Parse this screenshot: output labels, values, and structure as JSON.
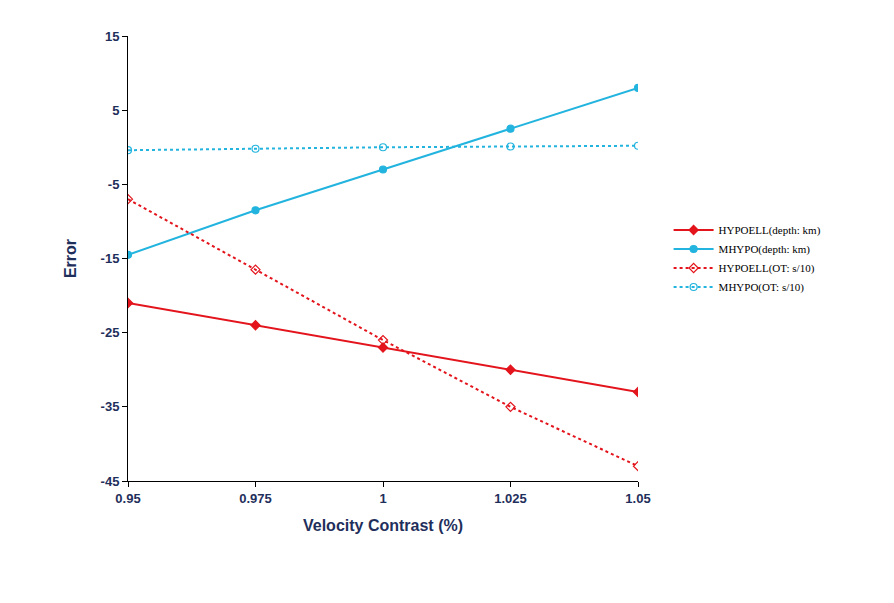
{
  "chart_data": {
    "type": "line",
    "x_label": "Velocity Contrast (%)",
    "y_label": "Error",
    "x": [
      0.95,
      0.975,
      1,
      1.025,
      1.05
    ],
    "xlim": [
      0.95,
      1.05
    ],
    "xticks": [
      0.95,
      0.975,
      1,
      1.025,
      1.05
    ],
    "ylim": [
      -45,
      15
    ],
    "yticks": [
      -45,
      -35,
      -25,
      -15,
      -5,
      5,
      15
    ],
    "grid": false,
    "legend": "right",
    "series": [
      {
        "name": "HYPOELL(depth: km)",
        "color": "#e3141c",
        "marker": "diamond",
        "line_style": "solid",
        "values": [
          -21,
          -24,
          -27,
          -30,
          -33
        ]
      },
      {
        "name": "MHYPO(depth: km)",
        "color": "#22b4de",
        "marker": "circle",
        "line_style": "solid",
        "values": [
          -14.5,
          -8.5,
          -3,
          2.5,
          8
        ]
      },
      {
        "name": "HYPOELL(OT: s/10)",
        "color": "#e3141c",
        "marker": "diamond-open",
        "line_style": "dot",
        "values": [
          -7,
          -16.5,
          -26,
          -35,
          -43
        ]
      },
      {
        "name": "MHYPO(OT: s/10)",
        "color": "#22b4de",
        "marker": "circle-open",
        "line_style": "dot",
        "values": [
          -0.4,
          -0.2,
          0,
          0.1,
          0.2
        ]
      }
    ]
  }
}
